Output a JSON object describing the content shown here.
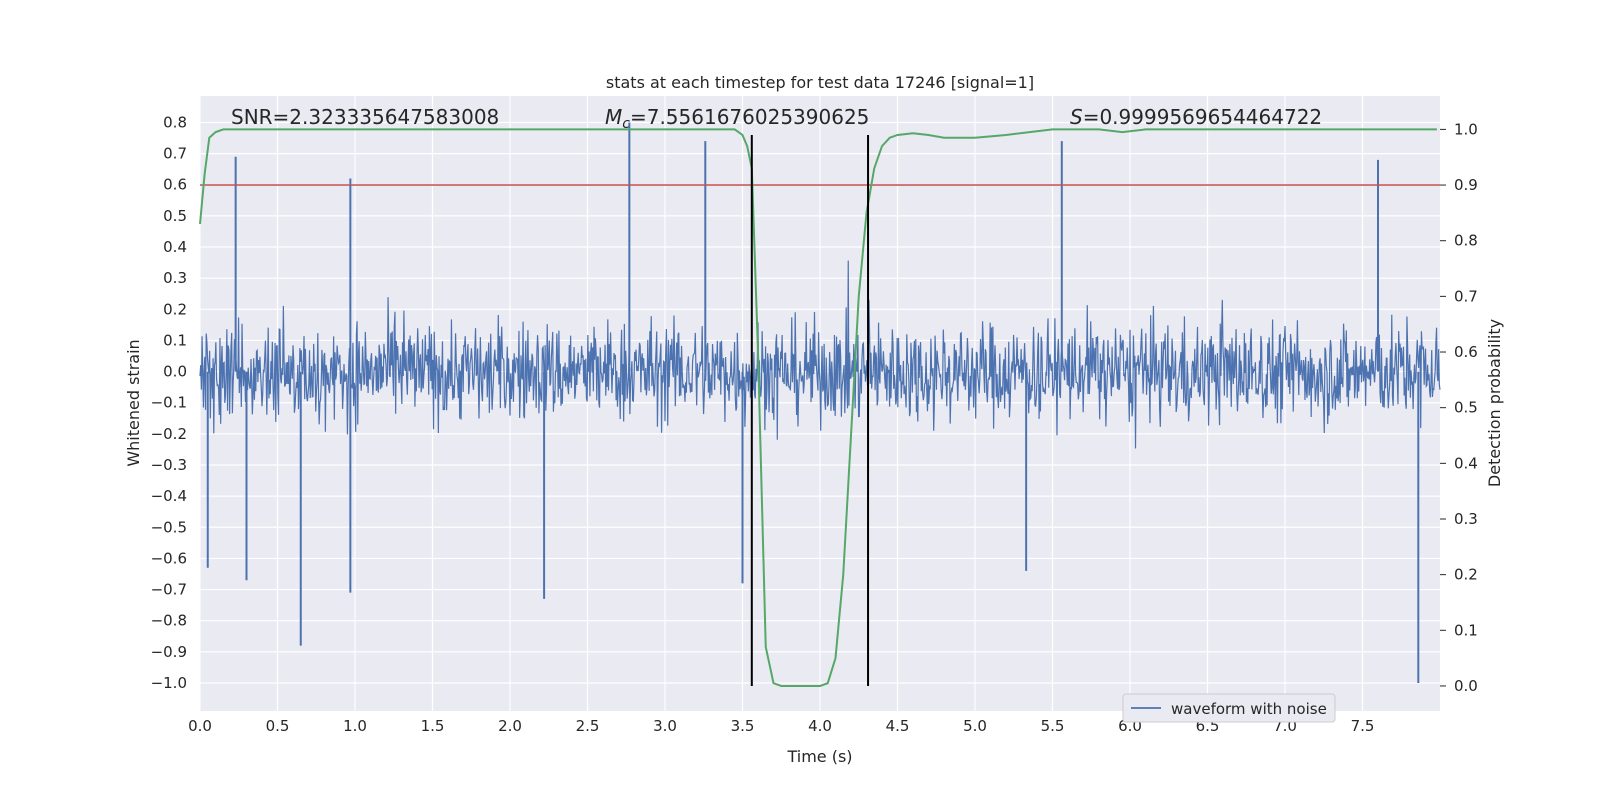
{
  "chart_data": {
    "type": "line",
    "title": "stats at each timestep for test data 17246 [signal=1]",
    "xlabel": "Time (s)",
    "ylabel_left": "Whitened strain",
    "ylabel_right": "Detection probability",
    "xlim": [
      0.0,
      8.0
    ],
    "ylim_left": [
      -1.09,
      0.885
    ],
    "ylim_right": [
      -0.045,
      1.06
    ],
    "x_ticks": [
      0.0,
      0.5,
      1.0,
      1.5,
      2.0,
      2.5,
      3.0,
      3.5,
      4.0,
      4.5,
      5.0,
      5.5,
      6.0,
      6.5,
      7.0,
      7.5
    ],
    "x_tick_labels": [
      "0.0",
      "0.5",
      "1.0",
      "1.5",
      "2.0",
      "2.5",
      "3.0",
      "3.5",
      "4.0",
      "4.5",
      "5.0",
      "5.5",
      "6.0",
      "6.5",
      "7.0",
      "7.5"
    ],
    "y_left_ticks": [
      0.8,
      0.7,
      0.6,
      0.5,
      0.4,
      0.3,
      0.2,
      0.1,
      0.0,
      -0.1,
      -0.2,
      -0.3,
      -0.4,
      -0.5,
      -0.6,
      -0.7,
      -0.8,
      -0.9,
      -1.0
    ],
    "y_left_tick_labels": [
      "0.8",
      "0.7",
      "0.6",
      "0.5",
      "0.4",
      "0.3",
      "0.2",
      "0.1",
      "0.0",
      "−0.1",
      "−0.2",
      "−0.3",
      "−0.4",
      "−0.5",
      "−0.6",
      "−0.7",
      "−0.8",
      "−0.9",
      "−1.0"
    ],
    "y_right_ticks": [
      1.0,
      0.9,
      0.8,
      0.7,
      0.6,
      0.5,
      0.4,
      0.3,
      0.2,
      0.1,
      0.0
    ],
    "y_right_tick_labels": [
      "1.0",
      "0.9",
      "0.8",
      "0.7",
      "0.6",
      "0.5",
      "0.4",
      "0.3",
      "0.2",
      "0.1",
      "0.0"
    ],
    "grid": true,
    "legend": {
      "position": "lower-right",
      "entries": [
        "waveform with noise"
      ]
    },
    "annotations": {
      "snr": "SNR=2.323335647583008",
      "mc_prefix": "M",
      "mc_sub": "c",
      "mc_value": "=7.5561676025390625",
      "s_prefix": "S",
      "s_value": "=0.9999569654464722"
    },
    "series": [
      {
        "name": "waveform with noise",
        "axis": "left",
        "style": "noise",
        "color": "#4c72b0",
        "x_range": [
          0.0,
          8.0
        ],
        "typical_envelope": [
          -0.45,
          0.42
        ],
        "notable_spikes": [
          {
            "x": 0.23,
            "y": 0.69
          },
          {
            "x": 0.97,
            "y": 0.62
          },
          {
            "x": 2.77,
            "y": 0.8
          },
          {
            "x": 3.26,
            "y": 0.74
          },
          {
            "x": 5.56,
            "y": 0.74
          },
          {
            "x": 7.6,
            "y": 0.68
          },
          {
            "x": 0.65,
            "y": -0.88
          },
          {
            "x": 0.97,
            "y": -0.71
          },
          {
            "x": 2.22,
            "y": -0.73
          },
          {
            "x": 3.5,
            "y": -0.68
          },
          {
            "x": 5.33,
            "y": -0.64
          },
          {
            "x": 7.86,
            "y": -1.0
          },
          {
            "x": 0.05,
            "y": -0.63
          },
          {
            "x": 0.3,
            "y": -0.67
          }
        ]
      },
      {
        "name": "",
        "axis": "right",
        "color": "#55a868",
        "x": [
          0.0,
          0.03,
          0.06,
          0.1,
          0.15,
          0.5,
          1.0,
          2.0,
          3.0,
          3.45,
          3.5,
          3.53,
          3.56,
          3.6,
          3.65,
          3.7,
          3.75,
          3.8,
          3.9,
          4.0,
          4.05,
          4.1,
          4.15,
          4.2,
          4.25,
          4.3,
          4.35,
          4.4,
          4.45,
          4.5,
          4.6,
          4.7,
          4.8,
          4.9,
          5.0,
          5.2,
          5.5,
          5.8,
          5.95,
          6.1,
          6.5,
          7.0,
          7.5,
          7.98
        ],
        "y": [
          0.83,
          0.92,
          0.985,
          0.995,
          1.0,
          1.0,
          1.0,
          1.0,
          1.0,
          1.0,
          0.99,
          0.97,
          0.93,
          0.6,
          0.07,
          0.005,
          0.0,
          0.0,
          0.0,
          0.0,
          0.005,
          0.05,
          0.2,
          0.45,
          0.7,
          0.85,
          0.93,
          0.97,
          0.985,
          0.99,
          0.993,
          0.99,
          0.985,
          0.985,
          0.985,
          0.99,
          1.0,
          1.0,
          0.995,
          1.0,
          1.0,
          1.0,
          1.0,
          1.0
        ]
      }
    ],
    "horizontal_lines": [
      {
        "axis": "right",
        "y": 0.9,
        "color": "#c44e52"
      }
    ],
    "vertical_lines": [
      {
        "x": 3.56,
        "y_right_range": [
          0.0,
          0.99
        ],
        "color": "#000000"
      },
      {
        "x": 4.31,
        "y_right_range": [
          0.0,
          0.99
        ],
        "color": "#000000"
      }
    ]
  }
}
